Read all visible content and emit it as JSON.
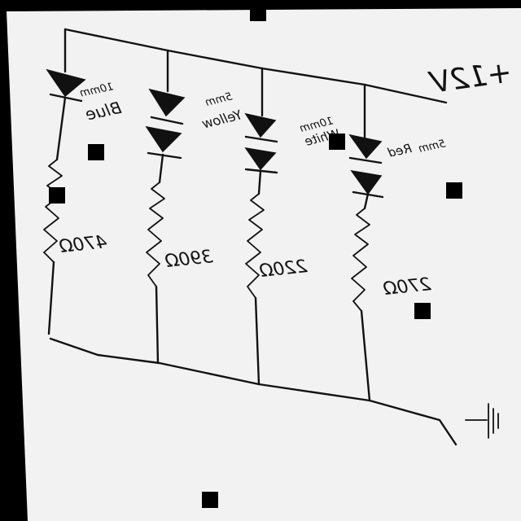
{
  "colors": {
    "paper": "#f2f2f2",
    "ink": "#111111",
    "frame": "#000000"
  },
  "supply": {
    "label": "+12V"
  },
  "ground": {
    "icon": "ground-symbol-icon"
  },
  "branches": [
    {
      "led_size": "10mm",
      "led_color": "Blue",
      "led_count": 1,
      "resistor": "470Ω"
    },
    {
      "led_size": "5mm",
      "led_color": "Yellow",
      "led_count": 2,
      "resistor": "390Ω"
    },
    {
      "led_size": "10mm",
      "led_color": "White",
      "led_count": 2,
      "resistor": "220Ω"
    },
    {
      "led_size": "5mm",
      "led_color": "Red",
      "led_count": 2,
      "resistor": "270Ω"
    }
  ]
}
